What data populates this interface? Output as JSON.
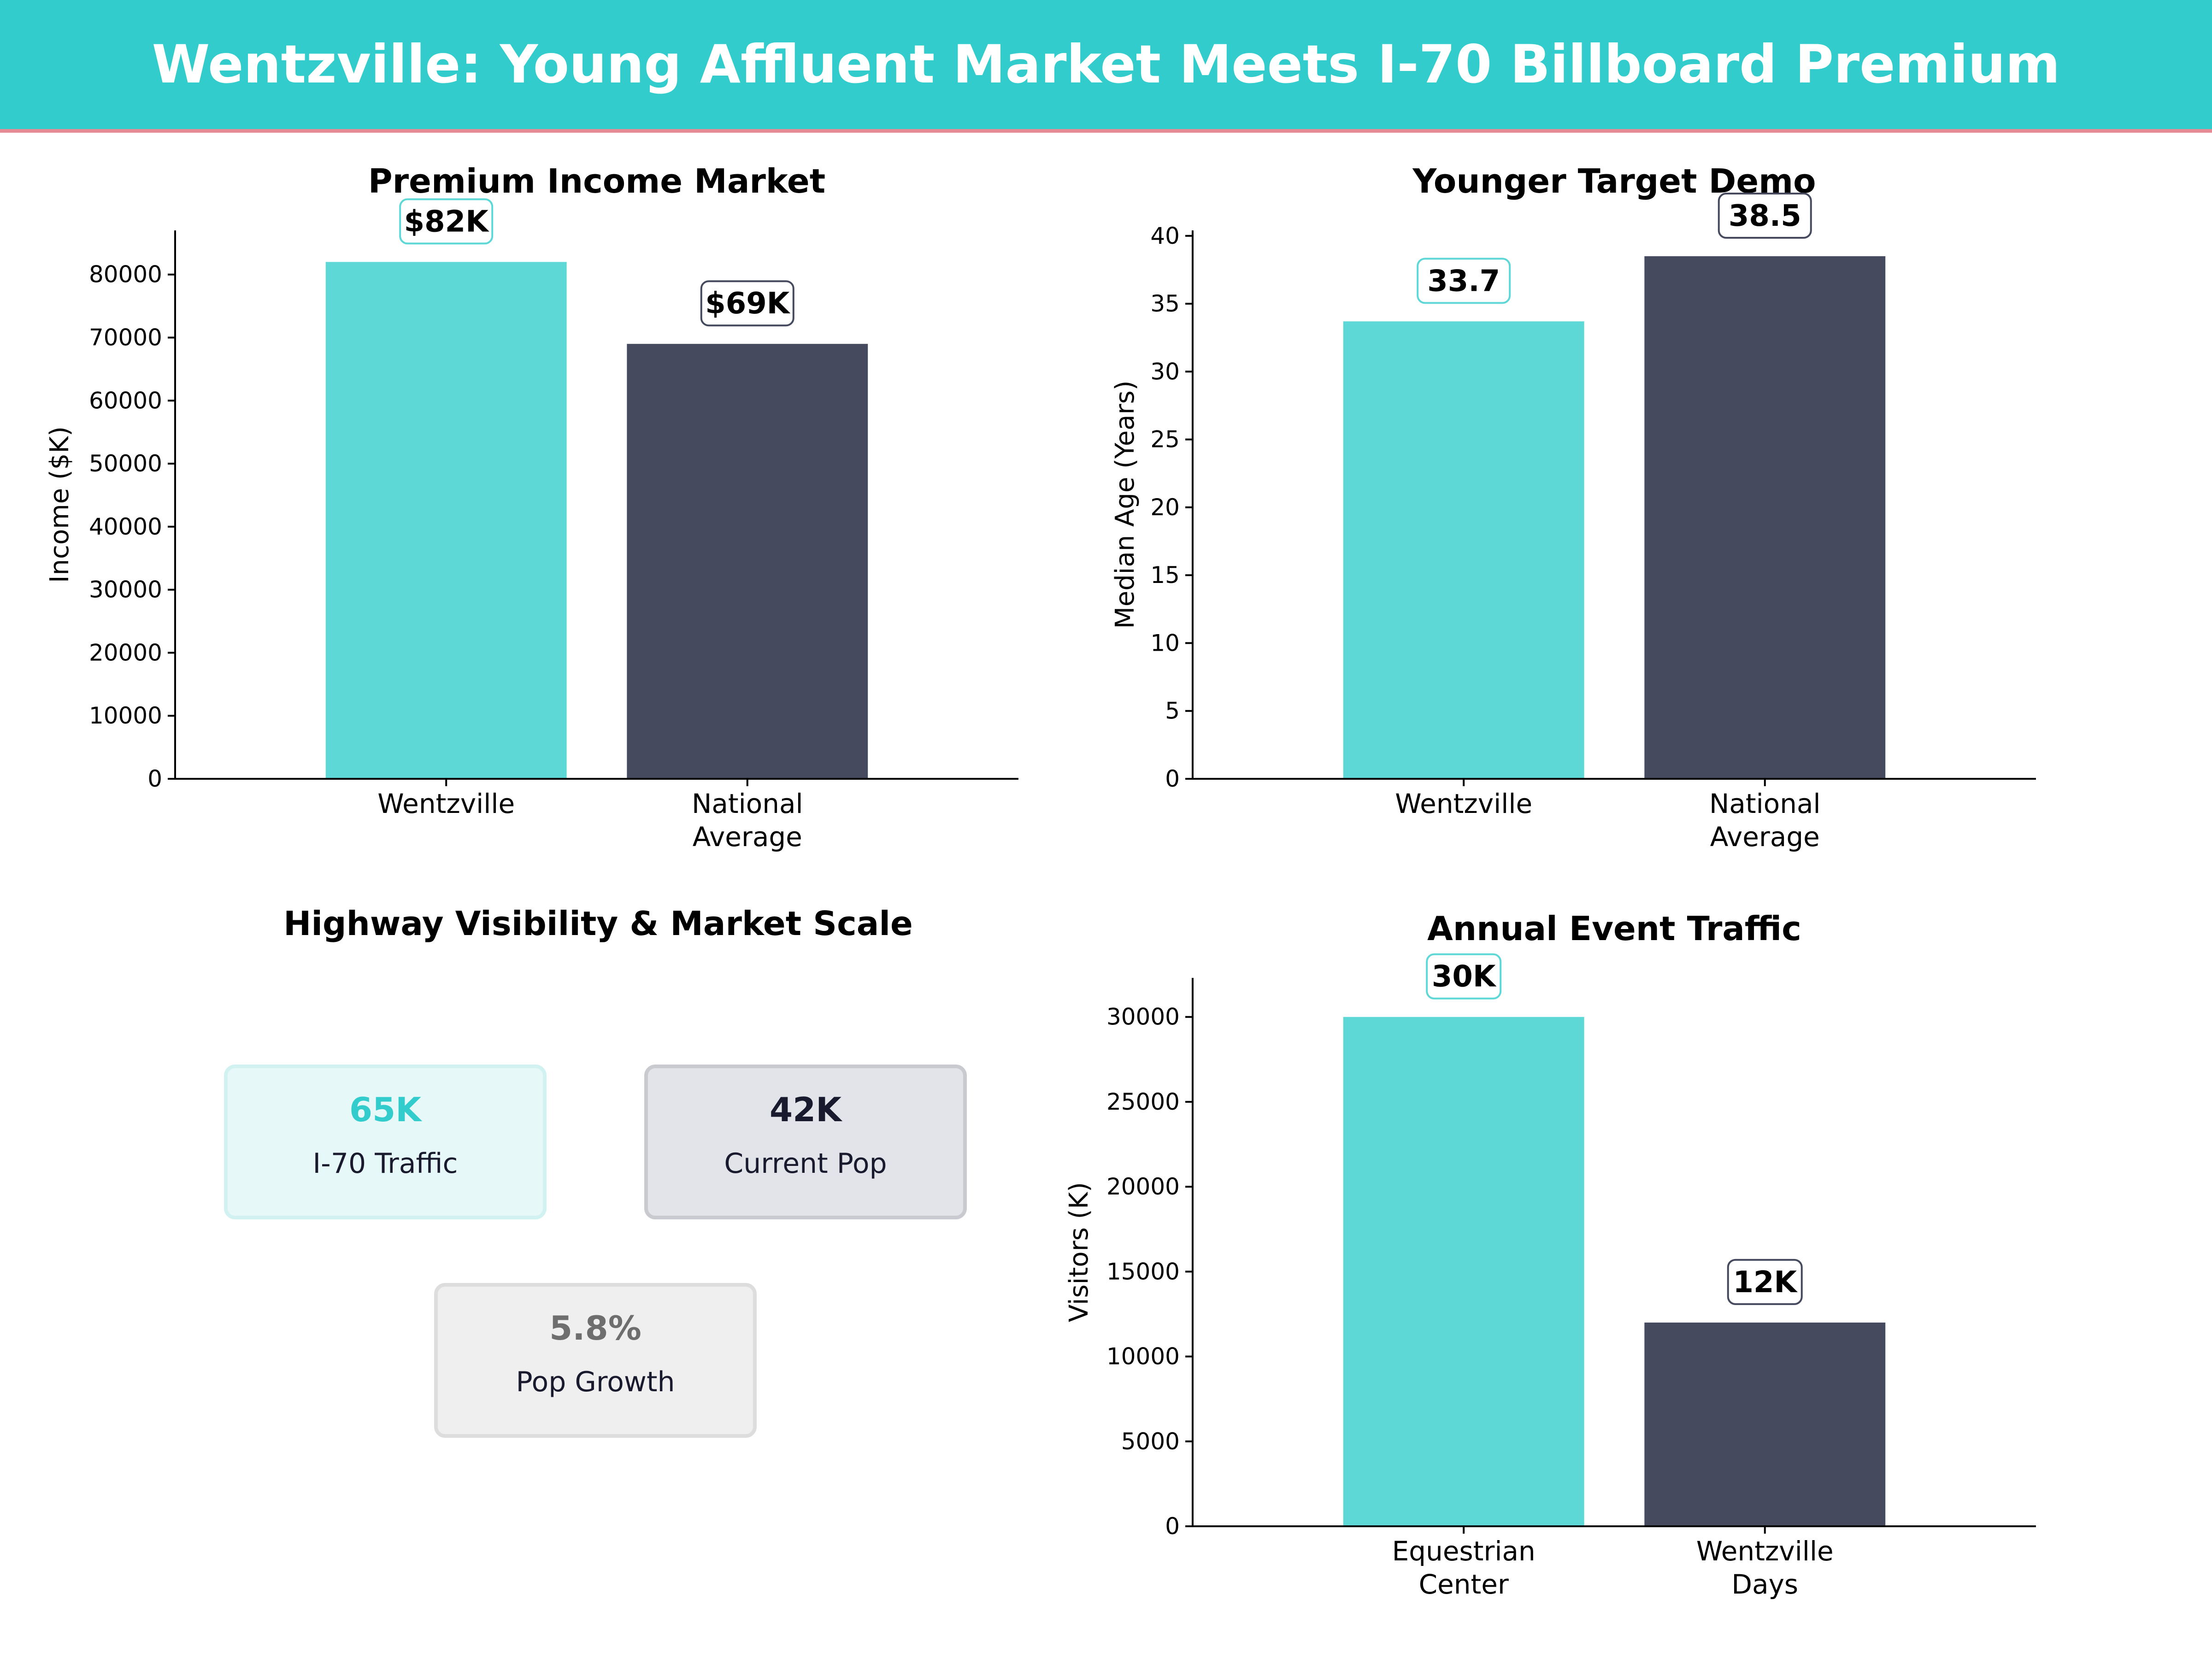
{
  "header": {
    "title": "Wentzville: Young Affluent Market Meets I-70 Billboard Premium",
    "background": "#33cccc",
    "accent_line": "#e58b95"
  },
  "colors": {
    "primary": "#5dd8d6",
    "secondary": "#454a5e"
  },
  "chart_data": [
    {
      "type": "bar",
      "title": "Premium Income Market",
      "categories": [
        "Wentzville",
        "National\nAverage"
      ],
      "values": [
        82000,
        69000
      ],
      "value_labels": [
        "$82K",
        "$69K"
      ],
      "ylabel": "Income ($K)",
      "ylim": [
        0,
        87000
      ],
      "yticks": [
        0,
        10000,
        20000,
        30000,
        40000,
        50000,
        60000,
        70000,
        80000
      ],
      "grid": false
    },
    {
      "type": "bar",
      "title": "Younger Target Demo",
      "categories": [
        "Wentzville",
        "National\nAverage"
      ],
      "values": [
        33.7,
        38.5
      ],
      "value_labels": [
        "33.7",
        "38.5"
      ],
      "ylabel": "Median Age (Years)",
      "ylim": [
        0,
        40.4
      ],
      "yticks": [
        0,
        5,
        10,
        15,
        20,
        25,
        30,
        35,
        40
      ],
      "grid": false
    },
    {
      "type": "bar",
      "title": "Annual Event Traffic",
      "categories": [
        "Equestrian\nCenter",
        "Wentzville\nDays"
      ],
      "values": [
        30000,
        12000
      ],
      "value_labels": [
        "30K",
        "12K"
      ],
      "ylabel": "Visitors (K)",
      "ylim": [
        0,
        32300
      ],
      "yticks": [
        0,
        5000,
        10000,
        15000,
        20000,
        25000,
        30000
      ],
      "grid": false
    }
  ],
  "metrics_panel": {
    "title": "Highway Visibility & Market Scale",
    "cards": [
      {
        "value": "65K",
        "label": "I-70 Traffic",
        "value_color": "#33cccc",
        "fill": "#e6f8f8",
        "border": "#d2f2f2"
      },
      {
        "value": "42K",
        "label": "Current Pop",
        "value_color": "#1a1a2e",
        "fill": "#e2e4e9",
        "border": "#c8cad0"
      },
      {
        "value": "5.8%",
        "label": "Pop Growth",
        "value_color": "#6e6e6e",
        "fill": "#efefef",
        "border": "#dddddd"
      }
    ]
  }
}
